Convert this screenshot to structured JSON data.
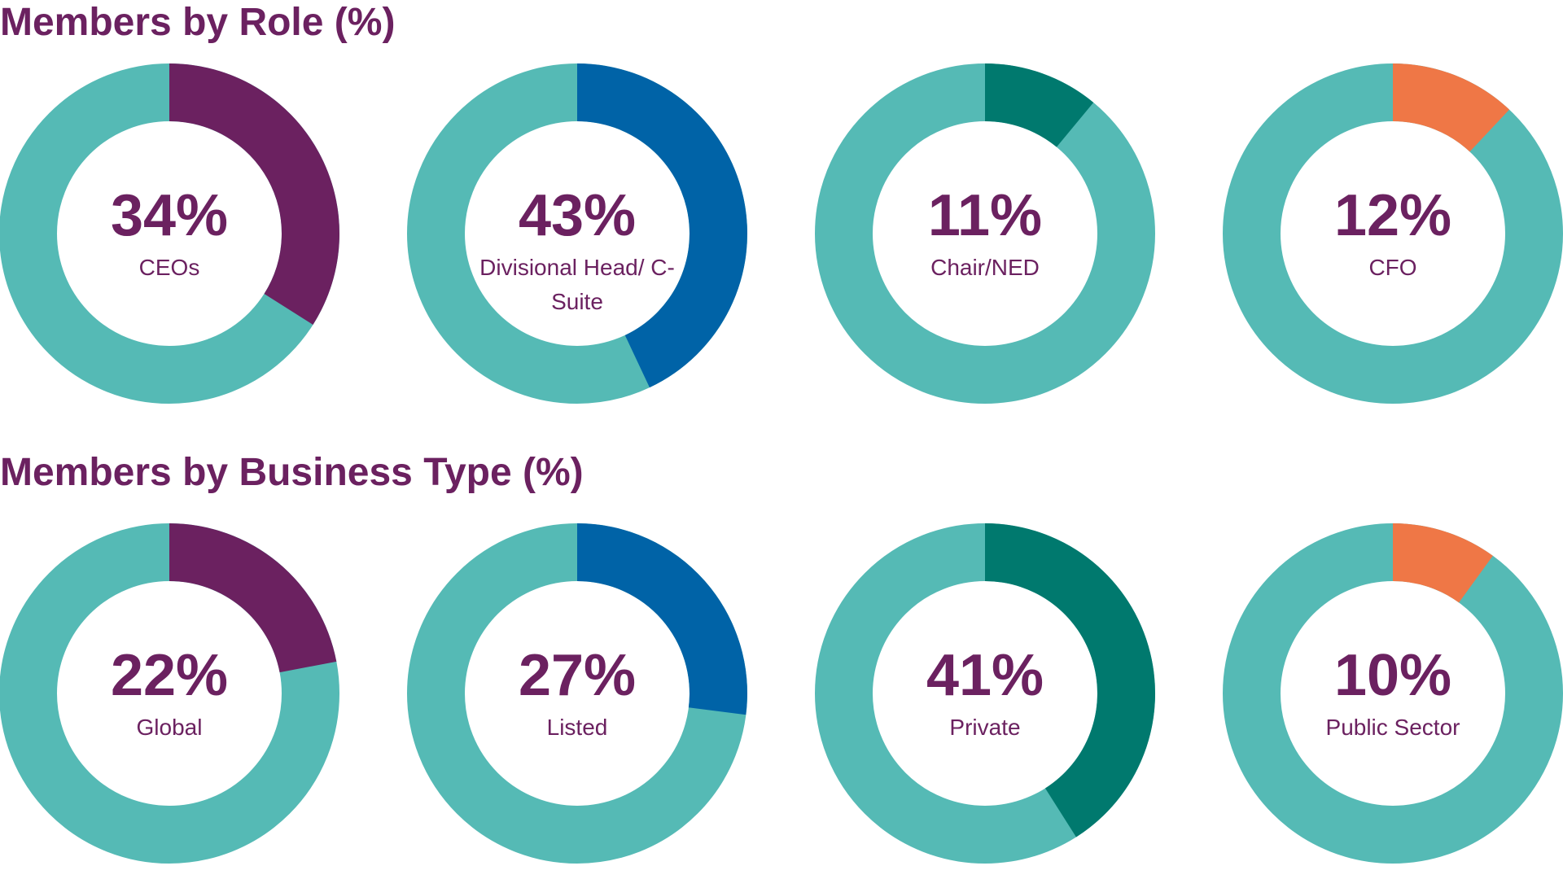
{
  "chart_data": [
    {
      "type": "donut",
      "title": "Members by Role (%)",
      "categories": [
        "CEOs",
        "Divisional Head/ C-Suite",
        "Chair/NED",
        "CFO"
      ],
      "values": [
        34,
        43,
        11,
        12
      ],
      "value_labels": [
        "34%",
        "43%",
        "11%",
        "12%"
      ],
      "colors": [
        "#6b2160",
        "#0063a7",
        "#00796e",
        "#ef7746"
      ],
      "remainder_color": "#55bab5"
    },
    {
      "type": "donut",
      "title": "Members by Business Type (%)",
      "categories": [
        "Global",
        "Listed",
        "Private",
        "Public Sector"
      ],
      "values": [
        22,
        27,
        41,
        10
      ],
      "value_labels": [
        "22%",
        "27%",
        "41%",
        "10%"
      ],
      "colors": [
        "#6b2160",
        "#0063a7",
        "#00796e",
        "#ef7746"
      ],
      "remainder_color": "#55bab5"
    }
  ]
}
